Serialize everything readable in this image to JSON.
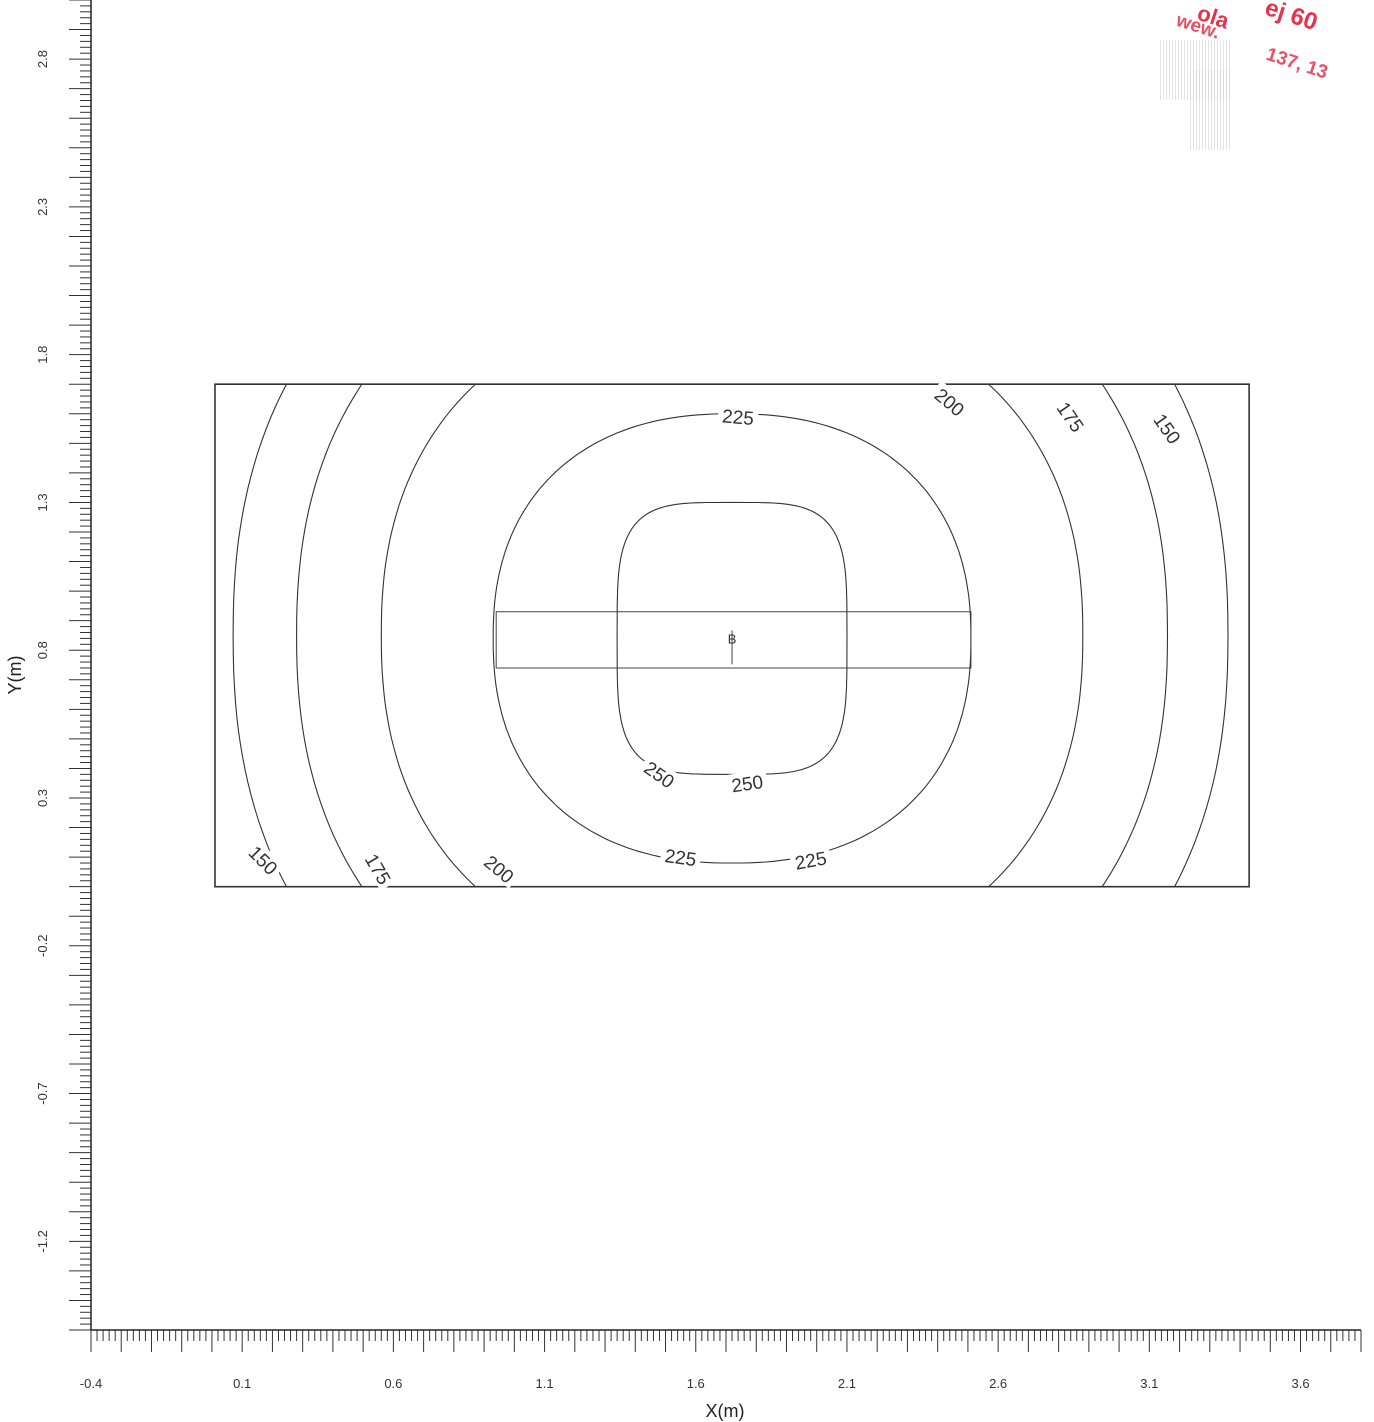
{
  "chart_data": {
    "type": "contour",
    "xlabel": "X(m)",
    "ylabel": "Y(m)",
    "xlim": [
      -0.4,
      3.8
    ],
    "ylim": [
      -1.5,
      3.0
    ],
    "x_ticks": [
      "-0.4",
      "0.1",
      "0.6",
      "1.1",
      "1.6",
      "2.1",
      "2.6",
      "3.1",
      "3.6"
    ],
    "x_tick_values": [
      -0.4,
      0.1,
      0.6,
      1.1,
      1.6,
      2.1,
      2.6,
      3.1,
      3.6
    ],
    "y_ticks": [
      "-1.2",
      "-0.7",
      "-0.2",
      "0.3",
      "0.8",
      "1.3",
      "1.8",
      "2.3",
      "2.8"
    ],
    "y_tick_values": [
      -1.2,
      -0.7,
      -0.2,
      0.3,
      0.8,
      1.3,
      1.8,
      2.3,
      2.8
    ],
    "area_outline": [
      [
        0.01,
        0.0
      ],
      [
        3.43,
        0.0
      ],
      [
        3.43,
        1.7
      ],
      [
        0.01,
        1.7
      ]
    ],
    "luminaire_outline": [
      [
        0.94,
        0.74
      ],
      [
        2.51,
        0.74
      ],
      [
        2.51,
        0.93
      ],
      [
        0.94,
        0.93
      ]
    ],
    "luminaire_marker": {
      "label": "B",
      "x": 1.72,
      "y": 0.84
    },
    "center": [
      1.72,
      0.85
    ],
    "contours": [
      {
        "level": 250,
        "label": "250",
        "x_extent": [
          1.34,
          2.1
        ],
        "y_extent": [
          0.38,
          1.3
        ]
      },
      {
        "level": 225,
        "label": "225",
        "x_extent": [
          0.93,
          2.51
        ],
        "y_extent": [
          0.08,
          1.6
        ]
      },
      {
        "level": 200,
        "label": "200",
        "x_extent": [
          0.56,
          2.88
        ]
      },
      {
        "level": 175,
        "label": "175",
        "x_extent": [
          0.28,
          3.16
        ]
      },
      {
        "level": 150,
        "label": "150",
        "x_extent": [
          0.07,
          3.36
        ]
      }
    ],
    "contour_labels": [
      {
        "text": "225",
        "x": 1.74,
        "y": 1.59,
        "angle": 5
      },
      {
        "text": "200",
        "x": 2.44,
        "y": 1.64,
        "angle": 40
      },
      {
        "text": "175",
        "x": 2.84,
        "y": 1.59,
        "angle": 55
      },
      {
        "text": "150",
        "x": 3.16,
        "y": 1.55,
        "angle": 55
      },
      {
        "text": "250",
        "x": 1.48,
        "y": 0.38,
        "angle": 35
      },
      {
        "text": "250",
        "x": 1.77,
        "y": 0.35,
        "angle": -8
      },
      {
        "text": "225",
        "x": 1.55,
        "y": 0.1,
        "angle": 8
      },
      {
        "text": "225",
        "x": 1.98,
        "y": 0.09,
        "angle": -10
      },
      {
        "text": "150",
        "x": 0.17,
        "y": 0.09,
        "angle": 45
      },
      {
        "text": "175",
        "x": 0.55,
        "y": 0.06,
        "angle": 60
      },
      {
        "text": "200",
        "x": 0.95,
        "y": 0.06,
        "angle": 40
      }
    ]
  },
  "stamp": {
    "lines": [
      "ej 60",
      "ola",
      "wew.",
      "137, 13"
    ]
  }
}
